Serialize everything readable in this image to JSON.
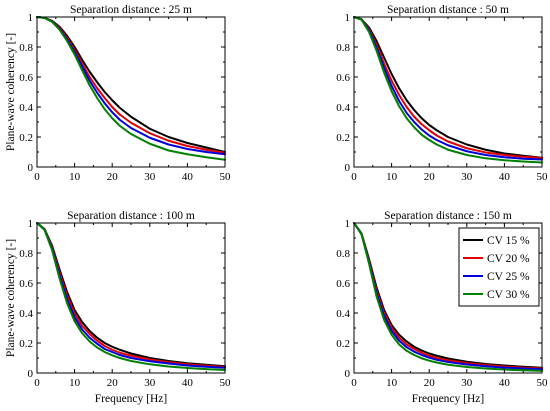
{
  "chart_data": [
    {
      "type": "line",
      "title": "Separation distance : 25 m",
      "xlabel": "",
      "ylabel": "Plane-wave coherency [-]",
      "xlim": [
        0,
        50
      ],
      "ylim": [
        0,
        1
      ],
      "xticks": [
        0,
        10,
        20,
        30,
        40,
        50
      ],
      "yticks": [
        0,
        0.2,
        0.4,
        0.6,
        0.8,
        1
      ],
      "ytick_labels": [
        "0",
        "0.2",
        "0.4",
        "0.6",
        "0.8",
        "1"
      ],
      "x": [
        0,
        2,
        4,
        6,
        8,
        10,
        12,
        14,
        16,
        18,
        20,
        22,
        25,
        30,
        35,
        40,
        45,
        50
      ],
      "series": [
        {
          "name": "CV 15 %",
          "values": [
            1.0,
            0.995,
            0.975,
            0.935,
            0.875,
            0.8,
            0.715,
            0.635,
            0.565,
            0.5,
            0.445,
            0.395,
            0.335,
            0.255,
            0.2,
            0.16,
            0.13,
            0.1
          ]
        },
        {
          "name": "CV 20 %",
          "values": [
            1.0,
            0.995,
            0.972,
            0.928,
            0.86,
            0.78,
            0.69,
            0.6,
            0.525,
            0.46,
            0.4,
            0.35,
            0.295,
            0.225,
            0.175,
            0.14,
            0.115,
            0.095
          ]
        },
        {
          "name": "CV 25 %",
          "values": [
            1.0,
            0.994,
            0.97,
            0.92,
            0.85,
            0.765,
            0.67,
            0.575,
            0.495,
            0.425,
            0.365,
            0.315,
            0.26,
            0.195,
            0.15,
            0.12,
            0.1,
            0.085
          ]
        },
        {
          "name": "CV 30 %",
          "values": [
            1.0,
            0.994,
            0.968,
            0.915,
            0.84,
            0.75,
            0.645,
            0.545,
            0.46,
            0.385,
            0.325,
            0.275,
            0.22,
            0.155,
            0.11,
            0.085,
            0.065,
            0.048
          ]
        }
      ]
    },
    {
      "type": "line",
      "title": "Separation distance : 50 m",
      "xlabel": "",
      "ylabel": "",
      "xlim": [
        0,
        50
      ],
      "ylim": [
        0,
        1
      ],
      "xticks": [
        0,
        10,
        20,
        30,
        40,
        50
      ],
      "yticks": [
        0,
        0.2,
        0.4,
        0.6,
        0.8,
        1
      ],
      "ytick_labels": [
        "0",
        "0.2",
        "0.4",
        "0.6",
        "0.8",
        "1"
      ],
      "x": [
        0,
        2,
        4,
        6,
        8,
        10,
        12,
        14,
        16,
        18,
        20,
        22,
        25,
        30,
        35,
        40,
        45,
        50
      ],
      "series": [
        {
          "name": "CV 15 %",
          "values": [
            1.0,
            0.985,
            0.93,
            0.84,
            0.73,
            0.62,
            0.525,
            0.445,
            0.38,
            0.325,
            0.28,
            0.245,
            0.2,
            0.15,
            0.115,
            0.09,
            0.075,
            0.062
          ]
        },
        {
          "name": "CV 20 %",
          "values": [
            1.0,
            0.984,
            0.92,
            0.815,
            0.69,
            0.575,
            0.48,
            0.4,
            0.335,
            0.285,
            0.245,
            0.21,
            0.17,
            0.125,
            0.097,
            0.08,
            0.068,
            0.06
          ]
        },
        {
          "name": "CV 25 %",
          "values": [
            1.0,
            0.983,
            0.91,
            0.795,
            0.66,
            0.54,
            0.44,
            0.36,
            0.3,
            0.25,
            0.21,
            0.18,
            0.145,
            0.105,
            0.08,
            0.065,
            0.055,
            0.05
          ]
        },
        {
          "name": "CV 30 %",
          "values": [
            1.0,
            0.982,
            0.9,
            0.775,
            0.63,
            0.505,
            0.405,
            0.325,
            0.265,
            0.215,
            0.18,
            0.15,
            0.115,
            0.08,
            0.058,
            0.045,
            0.037,
            0.03
          ]
        }
      ]
    },
    {
      "type": "line",
      "title": "Separation distance : 100 m",
      "xlabel": "Frequency [Hz]",
      "ylabel": "Plane-wave coherency [-]",
      "xlim": [
        0,
        50
      ],
      "ylim": [
        0,
        1
      ],
      "xticks": [
        0,
        10,
        20,
        30,
        40,
        50
      ],
      "yticks": [
        0,
        0.2,
        0.4,
        0.6,
        0.8,
        1
      ],
      "ytick_labels": [
        "0",
        "0.2",
        "0.4",
        "0.6",
        "0.8",
        "1"
      ],
      "x": [
        0,
        2,
        4,
        6,
        8,
        10,
        12,
        14,
        16,
        18,
        20,
        22,
        25,
        30,
        35,
        40,
        45,
        50
      ],
      "series": [
        {
          "name": "CV 15 %",
          "values": [
            1.0,
            0.96,
            0.85,
            0.69,
            0.54,
            0.42,
            0.34,
            0.28,
            0.235,
            0.2,
            0.175,
            0.155,
            0.13,
            0.1,
            0.08,
            0.065,
            0.055,
            0.045
          ]
        },
        {
          "name": "CV 20 %",
          "values": [
            1.0,
            0.958,
            0.84,
            0.67,
            0.515,
            0.395,
            0.315,
            0.26,
            0.215,
            0.18,
            0.155,
            0.135,
            0.115,
            0.09,
            0.072,
            0.058,
            0.048,
            0.04
          ]
        },
        {
          "name": "CV 25 %",
          "values": [
            1.0,
            0.956,
            0.83,
            0.65,
            0.49,
            0.37,
            0.29,
            0.235,
            0.195,
            0.16,
            0.14,
            0.12,
            0.1,
            0.078,
            0.063,
            0.05,
            0.042,
            0.035
          ]
        },
        {
          "name": "CV 30 %",
          "values": [
            1.0,
            0.954,
            0.82,
            0.63,
            0.465,
            0.345,
            0.265,
            0.21,
            0.17,
            0.14,
            0.118,
            0.1,
            0.08,
            0.058,
            0.043,
            0.033,
            0.026,
            0.02
          ]
        }
      ]
    },
    {
      "type": "line",
      "title": "Separation distance : 150 m",
      "xlabel": "Frequency [Hz]",
      "ylabel": "",
      "xlim": [
        0,
        50
      ],
      "ylim": [
        0,
        1
      ],
      "xticks": [
        0,
        10,
        20,
        30,
        40,
        50
      ],
      "yticks": [
        0,
        0.2,
        0.4,
        0.6,
        0.8,
        1
      ],
      "ytick_labels": [
        "0",
        "0.2",
        "0.4",
        "0.6",
        "0.8",
        "1"
      ],
      "legend": "top-right",
      "x": [
        0,
        2,
        4,
        6,
        8,
        10,
        12,
        14,
        16,
        18,
        20,
        22,
        25,
        30,
        35,
        40,
        45,
        50
      ],
      "series": [
        {
          "name": "CV 15 %",
          "values": [
            1.0,
            0.93,
            0.76,
            0.57,
            0.42,
            0.32,
            0.255,
            0.21,
            0.175,
            0.15,
            0.13,
            0.115,
            0.097,
            0.075,
            0.06,
            0.05,
            0.042,
            0.035
          ]
        },
        {
          "name": "CV 20 %",
          "values": [
            1.0,
            0.928,
            0.75,
            0.55,
            0.4,
            0.3,
            0.235,
            0.19,
            0.16,
            0.135,
            0.115,
            0.1,
            0.085,
            0.066,
            0.053,
            0.043,
            0.036,
            0.03
          ]
        },
        {
          "name": "CV 25 %",
          "values": [
            1.0,
            0.926,
            0.74,
            0.53,
            0.38,
            0.28,
            0.215,
            0.172,
            0.142,
            0.12,
            0.102,
            0.088,
            0.073,
            0.057,
            0.045,
            0.036,
            0.03,
            0.025
          ]
        },
        {
          "name": "CV 30 %",
          "values": [
            1.0,
            0.924,
            0.73,
            0.51,
            0.355,
            0.255,
            0.19,
            0.148,
            0.12,
            0.098,
            0.082,
            0.07,
            0.055,
            0.04,
            0.03,
            0.023,
            0.018,
            0.014
          ]
        }
      ]
    }
  ],
  "colors": {
    "CV 15 %": "#000000",
    "CV 20 %": "#e00000",
    "CV 25 %": "#0000dd",
    "CV 30 %": "#008000"
  }
}
